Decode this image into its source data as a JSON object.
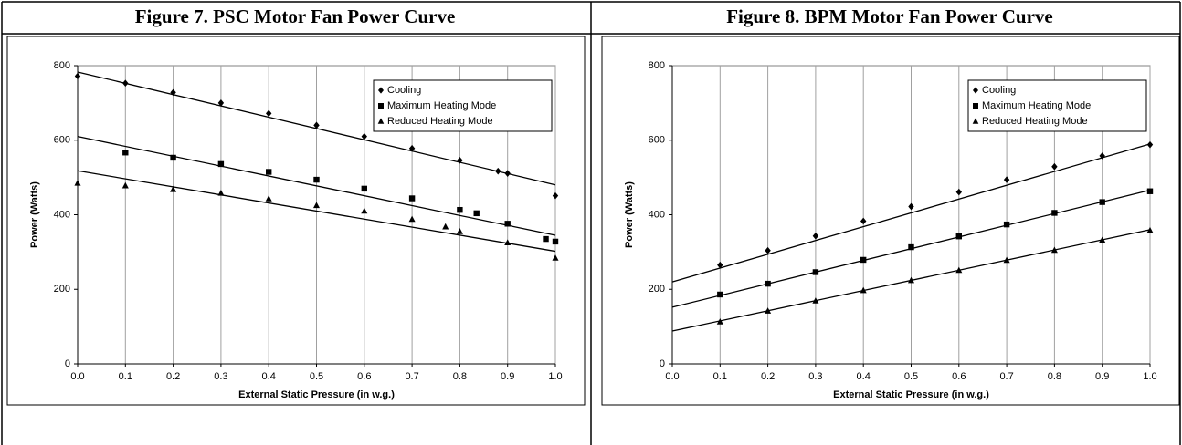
{
  "chart_data": [
    {
      "type": "scatter",
      "title": "Figure 7. PSC Motor Fan Power Curve",
      "xlabel": "External Static Pressure (in w.g.)",
      "ylabel": "Power (Watts)",
      "xlim": [
        0,
        1
      ],
      "xticks": [
        {
          "value": 0,
          "label": "0.0"
        },
        0.1,
        0.2,
        0.3,
        0.4,
        0.5,
        0.6,
        0.7,
        0.8,
        0.9,
        {
          "value": 1,
          "label": "1.0"
        }
      ],
      "ylim": [
        0,
        800
      ],
      "yticks": [
        0,
        200,
        400,
        600,
        800
      ],
      "grid": "x",
      "legend": "upper right",
      "series": [
        {
          "name": "Cooling",
          "marker": "diamond",
          "color": "#000000",
          "x": [
            0,
            0.1,
            0.2,
            0.3,
            0.4,
            0.5,
            0.6,
            0.7,
            0.8,
            0.88,
            0.9,
            1.0
          ],
          "values": [
            772,
            753,
            728,
            700,
            672,
            640,
            610,
            578,
            546,
            517,
            511,
            451
          ],
          "trendline": {
            "x": [
              0,
              1
            ],
            "values": [
              783,
              480
            ]
          }
        },
        {
          "name": "Maximum Heating Mode",
          "marker": "square",
          "color": "#000000",
          "x": [
            0.1,
            0.2,
            0.3,
            0.4,
            0.5,
            0.6,
            0.7,
            0.8,
            0.835,
            0.9,
            0.98,
            1.0
          ],
          "values": [
            567,
            553,
            536,
            515,
            494,
            470,
            444,
            413,
            404,
            376,
            335,
            328
          ],
          "trendline": {
            "x": [
              0,
              1
            ],
            "values": [
              610,
              345
            ]
          }
        },
        {
          "name": "Reduced Heating Mode",
          "marker": "triangle",
          "color": "#000000",
          "x": [
            0,
            0.1,
            0.2,
            0.3,
            0.4,
            0.5,
            0.6,
            0.7,
            0.77,
            0.8,
            0.9,
            1.0
          ],
          "values": [
            485,
            478,
            468,
            458,
            443,
            425,
            410,
            388,
            368,
            355,
            325,
            284
          ],
          "trendline": {
            "x": [
              0,
              1
            ],
            "values": [
              518,
              302
            ]
          }
        }
      ]
    },
    {
      "type": "scatter",
      "title": "Figure 8. BPM Motor Fan Power Curve",
      "xlabel": "External Static Pressure (in w.g.)",
      "ylabel": "Power (Watts)",
      "xlim": [
        0,
        1
      ],
      "xticks": [
        {
          "value": 0,
          "label": "0.0"
        },
        0.1,
        0.2,
        0.3,
        0.4,
        0.5,
        0.6,
        0.7,
        0.8,
        0.9,
        {
          "value": 1,
          "label": "1.0"
        }
      ],
      "ylim": [
        0,
        800
      ],
      "yticks": [
        0,
        200,
        400,
        600,
        800
      ],
      "grid": "x",
      "legend": "upper right",
      "series": [
        {
          "name": "Cooling",
          "marker": "diamond",
          "color": "#000000",
          "x": [
            0.1,
            0.2,
            0.3,
            0.4,
            0.5,
            0.6,
            0.7,
            0.8,
            0.9,
            1.0
          ],
          "values": [
            265,
            304,
            343,
            383,
            422,
            461,
            494,
            529,
            558,
            588
          ],
          "trendline": {
            "x": [
              0,
              1
            ],
            "values": [
              220,
              590
            ]
          }
        },
        {
          "name": "Maximum Heating Mode",
          "marker": "square",
          "color": "#000000",
          "x": [
            0.1,
            0.2,
            0.3,
            0.4,
            0.5,
            0.6,
            0.7,
            0.8,
            0.9,
            1.0
          ],
          "values": [
            186,
            215,
            246,
            279,
            313,
            342,
            374,
            405,
            434,
            463
          ],
          "trendline": {
            "x": [
              0,
              1
            ],
            "values": [
              152,
              466
            ]
          }
        },
        {
          "name": "Reduced Heating Mode",
          "marker": "triangle",
          "color": "#000000",
          "x": [
            0.1,
            0.2,
            0.3,
            0.4,
            0.5,
            0.6,
            0.7,
            0.8,
            0.9,
            1.0
          ],
          "values": [
            113,
            142,
            169,
            197,
            224,
            251,
            278,
            305,
            332,
            358
          ],
          "trendline": {
            "x": [
              0,
              1
            ],
            "values": [
              88,
              360
            ]
          }
        }
      ]
    }
  ]
}
